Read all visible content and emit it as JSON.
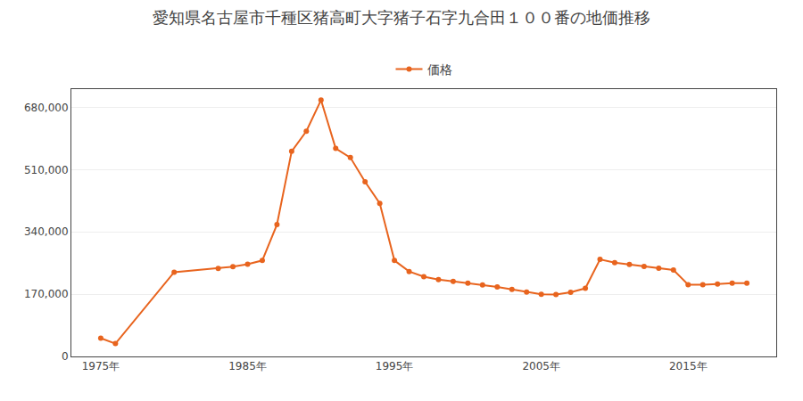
{
  "chart_data": {
    "type": "line",
    "title": "愛知県名古屋市千種区猪高町大字猪子石字九合田１００番の地価推移",
    "x": [
      1975,
      1976,
      1980,
      1983,
      1984,
      1985,
      1986,
      1987,
      1988,
      1989,
      1990,
      1991,
      1992,
      1993,
      1994,
      1995,
      1996,
      1997,
      1998,
      1999,
      2000,
      2001,
      2002,
      2003,
      2004,
      2005,
      2006,
      2007,
      2008,
      2009,
      2010,
      2011,
      2012,
      2013,
      2014,
      2015,
      2016,
      2017,
      2018,
      2019
    ],
    "series": [
      {
        "name": "価格",
        "color": "#e8641e",
        "marker": "circle",
        "line_style": "solid",
        "values": [
          50000,
          35000,
          230000,
          240000,
          245000,
          252000,
          262000,
          360000,
          560000,
          615000,
          700000,
          568000,
          543000,
          477000,
          418000,
          262000,
          232000,
          218000,
          210000,
          205000,
          200000,
          195000,
          190000,
          183000,
          176000,
          170000,
          169000,
          175000,
          186000,
          265000,
          256000,
          251000,
          246000,
          241000,
          236000,
          196000,
          196000,
          198000,
          200000,
          200000
        ]
      }
    ],
    "xlim": [
      1973,
      2021
    ],
    "xticks": [
      {
        "value": 1975,
        "label": "1975年"
      },
      {
        "value": 1985,
        "label": "1985年"
      },
      {
        "value": 1995,
        "label": "1995年"
      },
      {
        "value": 2005,
        "label": "2005年"
      },
      {
        "value": 2015,
        "label": "2015年"
      }
    ],
    "ylim": [
      0,
      730000
    ],
    "yticks": [
      0,
      {
        "value": 170000,
        "label": "170,000"
      },
      {
        "value": 340000,
        "label": "340,000"
      },
      {
        "value": 510000,
        "label": "510,000"
      },
      {
        "value": 680000,
        "label": "680,000"
      }
    ],
    "grid": true,
    "legend": "top"
  }
}
